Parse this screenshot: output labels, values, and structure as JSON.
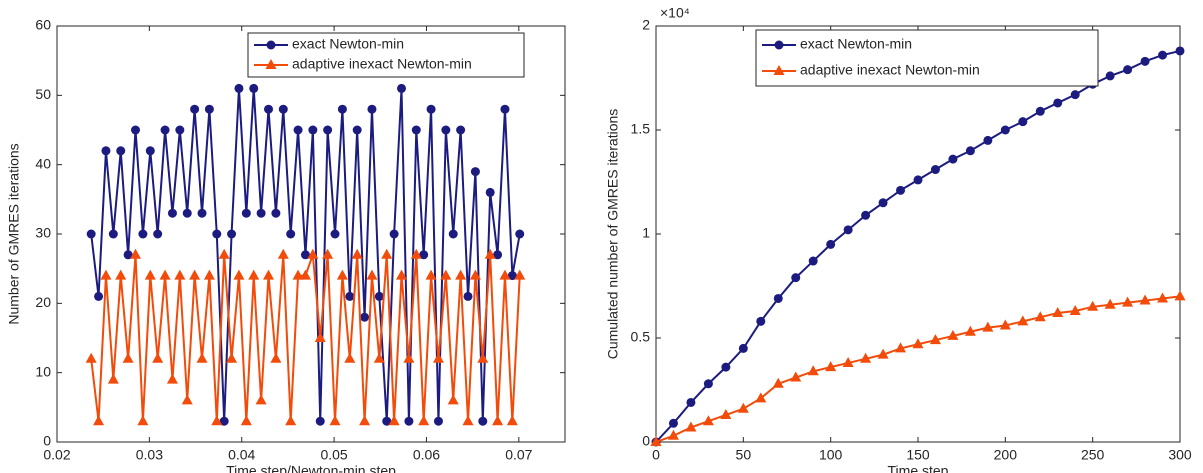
{
  "chart_data": [
    {
      "type": "line",
      "xlabel": "Time step/Newton-min step",
      "ylabel": "Number of GMRES iterations",
      "xlim": [
        0.02,
        0.075
      ],
      "xticks": [
        0.02,
        0.03,
        0.04,
        0.05,
        0.06,
        0.07
      ],
      "ylim": [
        0,
        60
      ],
      "yticks": [
        0,
        10,
        20,
        30,
        40,
        50,
        60
      ],
      "legend": "top-right",
      "x": [
        0.0237,
        0.0245,
        0.0253,
        0.0261,
        0.0269,
        0.0277,
        0.0285,
        0.0293,
        0.0301,
        0.0309,
        0.0317,
        0.0325,
        0.0333,
        0.0341,
        0.0349,
        0.0357,
        0.0365,
        0.0373,
        0.0381,
        0.0389,
        0.0397,
        0.0405,
        0.0413,
        0.0421,
        0.0429,
        0.0437,
        0.0445,
        0.0453,
        0.0461,
        0.0469,
        0.0477,
        0.0485,
        0.0493,
        0.0501,
        0.0509,
        0.0517,
        0.0525,
        0.0533,
        0.0541,
        0.0549,
        0.0557,
        0.0565,
        0.0573,
        0.0581,
        0.0589,
        0.0597,
        0.0605,
        0.0613,
        0.0621,
        0.0629,
        0.0637,
        0.0645,
        0.0653,
        0.0661,
        0.0669,
        0.0677,
        0.0685,
        0.0693,
        0.0701
      ],
      "series": [
        {
          "name": "exact Newton-min",
          "color": "#1c1c80",
          "marker": "circle",
          "values": [
            30,
            21,
            42,
            30,
            42,
            27,
            45,
            30,
            42,
            30,
            45,
            33,
            45,
            33,
            48,
            33,
            48,
            30,
            3,
            30,
            51,
            33,
            51,
            33,
            48,
            33,
            48,
            30,
            45,
            27,
            45,
            3,
            45,
            30,
            48,
            21,
            45,
            18,
            48,
            21,
            3,
            30,
            51,
            3,
            45,
            27,
            48,
            3,
            45,
            30,
            45,
            21,
            39,
            3,
            36,
            27,
            48,
            24,
            30
          ]
        },
        {
          "name": "adaptive inexact Newton-min",
          "color": "#f24b0a",
          "marker": "triangle",
          "values": [
            12,
            3,
            24,
            9,
            24,
            12,
            27,
            3,
            24,
            12,
            24,
            9,
            24,
            6,
            24,
            12,
            24,
            3,
            27,
            12,
            24,
            3,
            24,
            6,
            24,
            12,
            27,
            3,
            24,
            24,
            27,
            15,
            27,
            3,
            24,
            12,
            27,
            3,
            24,
            12,
            27,
            3,
            24,
            12,
            27,
            3,
            24,
            12,
            24,
            6,
            24,
            3,
            24,
            12,
            27,
            3,
            24,
            3,
            24
          ]
        }
      ]
    },
    {
      "type": "line",
      "xlabel": "Time step",
      "ylabel": "Cumulated number of GMRES iterations",
      "y_exponent": "×10⁴",
      "xlim": [
        0,
        300
      ],
      "xticks": [
        0,
        50,
        100,
        150,
        200,
        250,
        300
      ],
      "ylim": [
        0,
        20000
      ],
      "yticks": [
        {
          "value": 0,
          "label": "0"
        },
        {
          "value": 5000,
          "label": "0.5"
        },
        {
          "value": 10000,
          "label": "1"
        },
        {
          "value": 15000,
          "label": "1.5"
        },
        {
          "value": 20000,
          "label": "2"
        }
      ],
      "legend": "top-center",
      "x": [
        0,
        10,
        20,
        30,
        40,
        50,
        60,
        70,
        80,
        90,
        100,
        110,
        120,
        130,
        140,
        150,
        160,
        170,
        180,
        190,
        200,
        210,
        220,
        230,
        240,
        250,
        260,
        270,
        280,
        290,
        300
      ],
      "series": [
        {
          "name": "exact Newton-min",
          "color": "#1c1c80",
          "marker": "circle",
          "values": [
            0,
            900,
            1900,
            2800,
            3600,
            4500,
            5800,
            6900,
            7900,
            8700,
            9500,
            10200,
            10900,
            11500,
            12100,
            12600,
            13100,
            13600,
            14000,
            14500,
            15000,
            15400,
            15900,
            16300,
            16700,
            17200,
            17600,
            17900,
            18300,
            18600,
            18800
          ]
        },
        {
          "name": "adaptive inexact Newton-min",
          "color": "#f24b0a",
          "marker": "triangle",
          "values": [
            0,
            300,
            700,
            1000,
            1300,
            1600,
            2100,
            2800,
            3100,
            3400,
            3600,
            3800,
            4000,
            4200,
            4500,
            4700,
            4900,
            5100,
            5300,
            5500,
            5600,
            5800,
            6000,
            6200,
            6300,
            6500,
            6600,
            6700,
            6800,
            6900,
            7000
          ]
        }
      ]
    }
  ]
}
